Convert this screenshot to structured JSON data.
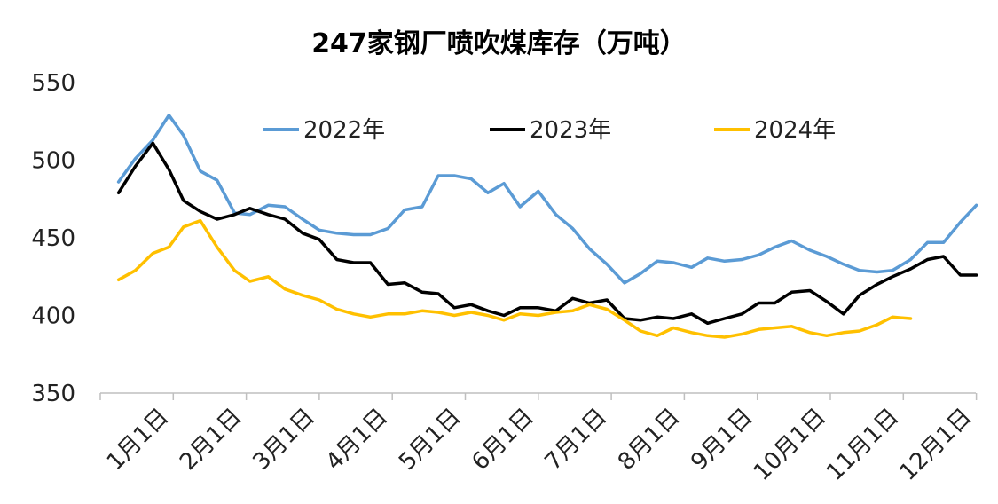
{
  "chart_data": {
    "type": "line",
    "title": "247家钢厂喷吹煤库存（万吨）",
    "xlabel": "",
    "ylabel": "",
    "ylim": [
      350,
      550
    ],
    "yticks": [
      350,
      400,
      450,
      500,
      550
    ],
    "xlim": [
      0,
      12
    ],
    "x_tick_labels": [
      "1月1日",
      "2月1日",
      "3月1日",
      "4月1日",
      "5月1日",
      "6月1日",
      "7月1日",
      "8月1日",
      "9月1日",
      "10月1日",
      "11月1日",
      "12月1日"
    ],
    "x_unit": "months since Jan 1 (0 = 1月1日)",
    "grid": false,
    "legend_position": "top",
    "series": [
      {
        "name": "2022年",
        "color": "#5B9BD5",
        "x": [
          0.25,
          0.48,
          0.72,
          0.94,
          1.14,
          1.37,
          1.6,
          1.84,
          2.05,
          2.3,
          2.53,
          2.77,
          3.0,
          3.24,
          3.47,
          3.7,
          3.94,
          4.17,
          4.41,
          4.63,
          4.85,
          5.08,
          5.31,
          5.53,
          5.75,
          6.0,
          6.24,
          6.47,
          6.7,
          6.94,
          7.18,
          7.4,
          7.63,
          7.85,
          8.1,
          8.32,
          8.55,
          8.79,
          9.02,
          9.24,
          9.47,
          9.72,
          9.95,
          10.18,
          10.4,
          10.64,
          10.85,
          11.1,
          11.33,
          11.55,
          11.78,
          12.0
        ],
        "values": [
          486,
          501,
          513,
          529,
          516,
          493,
          487,
          466,
          465,
          471,
          470,
          462,
          455,
          453,
          452,
          452,
          456,
          468,
          470,
          490,
          490,
          488,
          479,
          485,
          470,
          480,
          465,
          456,
          443,
          433,
          421,
          427,
          435,
          434,
          431,
          437,
          435,
          436,
          439,
          444,
          448,
          442,
          438,
          433,
          429,
          428,
          429,
          436,
          447,
          447,
          460,
          471
        ]
      },
      {
        "name": "2023年",
        "color": "#000000",
        "x": [
          0.25,
          0.48,
          0.72,
          0.94,
          1.14,
          1.37,
          1.6,
          1.84,
          2.05,
          2.3,
          2.53,
          2.77,
          3.0,
          3.24,
          3.47,
          3.7,
          3.94,
          4.17,
          4.41,
          4.63,
          4.85,
          5.08,
          5.31,
          5.53,
          5.75,
          6.0,
          6.24,
          6.47,
          6.7,
          6.94,
          7.18,
          7.4,
          7.63,
          7.85,
          8.1,
          8.32,
          8.55,
          8.79,
          9.02,
          9.24,
          9.47,
          9.72,
          9.95,
          10.18,
          10.4,
          10.64,
          10.85,
          11.1,
          11.33,
          11.55,
          11.78,
          12.0
        ],
        "values": [
          479,
          496,
          511,
          494,
          474,
          467,
          462,
          465,
          469,
          465,
          462,
          453,
          449,
          436,
          434,
          434,
          420,
          421,
          415,
          414,
          405,
          407,
          403,
          400,
          405,
          405,
          403,
          411,
          408,
          410,
          398,
          397,
          399,
          398,
          401,
          395,
          398,
          401,
          408,
          408,
          415,
          416,
          409,
          401,
          413,
          420,
          425,
          430,
          436,
          438,
          426,
          426
        ]
      },
      {
        "name": "2024年",
        "color": "#FFC000",
        "x": [
          0.25,
          0.48,
          0.72,
          0.94,
          1.14,
          1.37,
          1.6,
          1.84,
          2.05,
          2.3,
          2.53,
          2.77,
          3.0,
          3.24,
          3.47,
          3.7,
          3.94,
          4.17,
          4.41,
          4.63,
          4.85,
          5.08,
          5.31,
          5.53,
          5.75,
          6.0,
          6.24,
          6.47,
          6.7,
          6.94,
          7.18,
          7.4,
          7.63,
          7.85,
          8.1,
          8.32,
          8.55,
          8.79,
          9.02,
          9.24,
          9.47,
          9.72,
          9.95,
          10.18,
          10.4,
          10.64,
          10.85,
          11.1
        ],
        "values": [
          423,
          429,
          440,
          444,
          457,
          461,
          444,
          429,
          422,
          425,
          417,
          413,
          410,
          404,
          401,
          399,
          401,
          401,
          403,
          402,
          400,
          402,
          400,
          397,
          401,
          400,
          402,
          403,
          407,
          404,
          397,
          390,
          387,
          392,
          389,
          387,
          386,
          388,
          391,
          392,
          393,
          389,
          387,
          389,
          390,
          394,
          399,
          398
        ]
      }
    ]
  }
}
